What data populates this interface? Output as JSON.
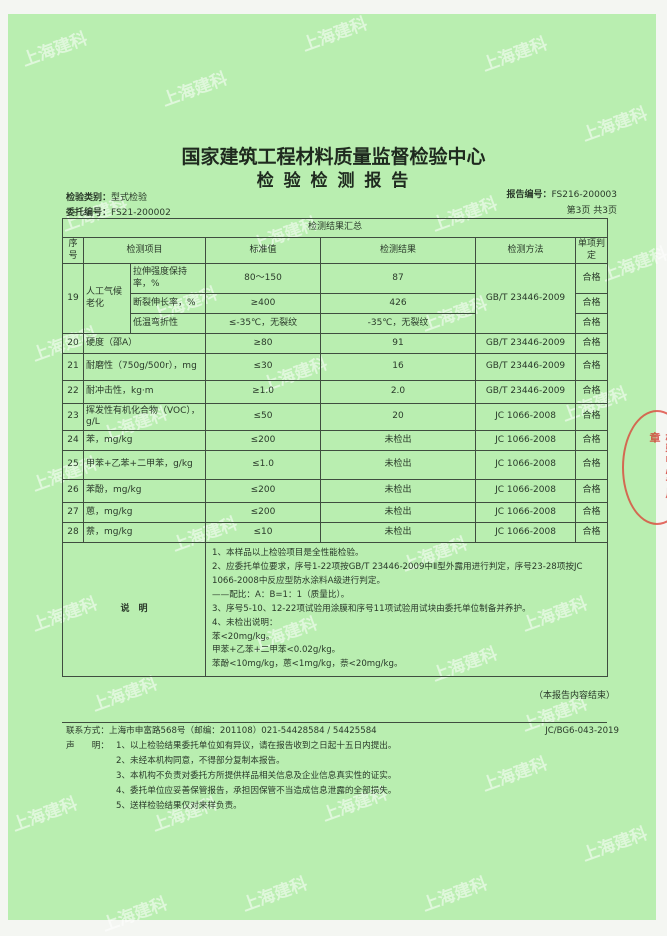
{
  "header": {
    "org": "国家建筑工程材料质量监督检验中心",
    "title": "检 验 检 测 报 告",
    "inspection_type_label": "检验类别：",
    "inspection_type": "型式检验",
    "commission_no_label": "委托编号：",
    "commission_no": "FS21-200002",
    "report_no_label": "报告编号：",
    "report_no": "FS216-200003",
    "page": "第3页 共3页"
  },
  "table": {
    "caption": "检测结果汇总",
    "headers": [
      "序号",
      "检测项目",
      "标准值",
      "检测结果",
      "检测方法",
      "单项判定"
    ],
    "row19": {
      "no": "19",
      "group": "人工气候老化",
      "method": "GB/T 23446-2009",
      "sub": [
        {
          "item": "拉伸强度保持率，%",
          "std": "80～150",
          "result": "87",
          "verdict": "合格"
        },
        {
          "item": "断裂伸长率，%",
          "std": "≥400",
          "result": "426",
          "verdict": "合格"
        },
        {
          "item": "低温弯折性",
          "std": "≤-35℃，无裂纹",
          "result": "-35℃，无裂纹",
          "verdict": "合格"
        }
      ]
    },
    "rows": [
      {
        "no": "20",
        "item": "硬度（邵A）",
        "std": "≥80",
        "result": "91",
        "method": "GB/T 23446-2009",
        "verdict": "合格"
      },
      {
        "no": "21",
        "item": "耐磨性（750g/500r），mg",
        "std": "≤30",
        "result": "16",
        "method": "GB/T 23446-2009",
        "verdict": "合格"
      },
      {
        "no": "22",
        "item": "耐冲击性，kg·m",
        "std": "≥1.0",
        "result": "2.0",
        "method": "GB/T 23446-2009",
        "verdict": "合格"
      },
      {
        "no": "23",
        "item": "挥发性有机化合物（VOC），g/L",
        "std": "≤50",
        "result": "20",
        "method": "JC 1066-2008",
        "verdict": "合格"
      },
      {
        "no": "24",
        "item": "苯，mg/kg",
        "std": "≤200",
        "result": "未检出",
        "method": "JC 1066-2008",
        "verdict": "合格"
      },
      {
        "no": "25",
        "item": "甲苯+乙苯+二甲苯，g/kg",
        "std": "≤1.0",
        "result": "未检出",
        "method": "JC 1066-2008",
        "verdict": "合格"
      },
      {
        "no": "26",
        "item": "苯酚，mg/kg",
        "std": "≤200",
        "result": "未检出",
        "method": "JC 1066-2008",
        "verdict": "合格"
      },
      {
        "no": "27",
        "item": "蒽，mg/kg",
        "std": "≤200",
        "result": "未检出",
        "method": "JC 1066-2008",
        "verdict": "合格"
      },
      {
        "no": "28",
        "item": "萘，mg/kg",
        "std": "≤10",
        "result": "未检出",
        "method": "JC 1066-2008",
        "verdict": "合格"
      }
    ],
    "notes_label": "说　明",
    "notes": [
      "1、本样品以上检验项目是全性能检验。",
      "2、应委托单位要求，序号1-22项按GB/T 23446-2009中Ⅱ型外露用进行判定，序号23-28项按JC 1066-2008中反应型防水涂料A级进行判定。",
      "——配比：A：B=1：1（质量比）。",
      "3、序号5-10、12-22项试验用涂膜和序号11项试验用试块由委托单位制备并养护。",
      "4、未检出说明：",
      "苯<20mg/kg。",
      "甲苯+乙苯+二甲苯<0.02g/kg。",
      "苯酚<10mg/kg，蒽<1mg/kg，萘<20mg/kg。"
    ]
  },
  "end_note": "（本报告内容结束）",
  "footer": {
    "contact": "联系方式：上海市申富路568号（邮编：201108）021-54428584 / 54425584",
    "doc_code": "JC/BG6-043-2019",
    "statement_label": "声　　明：",
    "statements": [
      "1、以上检验结果委托单位如有异议，请在报告收到之日起十五日内提出。",
      "2、未经本机构同意，不得部分复制本报告。",
      "3、本机构不负责对委托方所提供样品相关信息及企业信息真实性的证实。",
      "4、委托单位应妥善保管报告，承担因保管不当造成信息泄露的全部损失。",
      "5、送样检验结果仅对来样负责。"
    ]
  },
  "watermark": "上海建科",
  "stamp": "检验中心专用章",
  "colors": {
    "paper": "#b9eeb0",
    "stamp": "#d23228"
  }
}
